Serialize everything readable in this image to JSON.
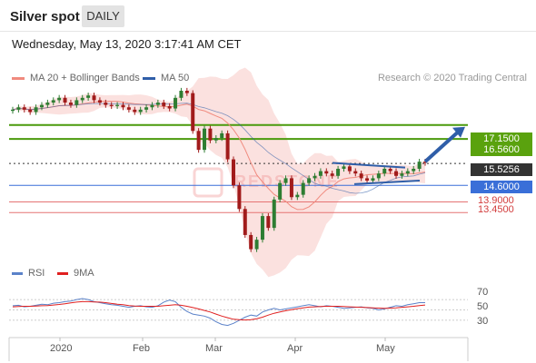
{
  "header": {
    "title": "Silver spot",
    "timeframe": "DAILY"
  },
  "datetime": "Wednesday, May 13, 2020 3:17:41 AM CET",
  "legend": {
    "ma20_bb": {
      "label": "MA 20 + Bollinger Bands",
      "color": "#f08a7e"
    },
    "ma50": {
      "label": "MA 50",
      "color": "#2f5ea8"
    }
  },
  "copyright": "Research © 2020 Trading Central",
  "watermark": "REDSTONE",
  "price_labels": [
    {
      "value": "17.1500",
      "style": "green"
    },
    {
      "value": "16.5600",
      "style": "green"
    },
    {
      "value": "15.5256",
      "style": "dark"
    },
    {
      "value": "14.6000",
      "style": "blue"
    },
    {
      "value": "13.9000",
      "style": "red"
    },
    {
      "value": "13.4500",
      "style": "red"
    }
  ],
  "rsi_legend": {
    "rsi": {
      "label": "RSI",
      "color": "#5b82c9"
    },
    "ma9": {
      "label": "9MA",
      "color": "#e02020"
    }
  },
  "rsi_ticks": [
    "70",
    "50",
    "30"
  ],
  "x_labels": [
    "2020",
    "Feb",
    "Mar",
    "Apr",
    "May"
  ],
  "chart_data": {
    "type": "line",
    "title": "Silver spot",
    "y_range": [
      11.5,
      18.6
    ],
    "levels": [
      {
        "name": "resistance",
        "value": 17.15,
        "color": "#4a9a0c"
      },
      {
        "name": "resistance",
        "value": 16.56,
        "color": "#4a9a0c"
      },
      {
        "name": "last",
        "value": 15.5256,
        "color": "#333333"
      },
      {
        "name": "pivot",
        "value": 14.6,
        "color": "#3a6fd8"
      },
      {
        "name": "support",
        "value": 13.9,
        "color": "#e57373"
      },
      {
        "name": "support",
        "value": 13.45,
        "color": "#e57373"
      }
    ],
    "series": [
      {
        "values": [
          17.8,
          17.9,
          17.8,
          17.7,
          17.9,
          18.0,
          18.1,
          18.2,
          18.3,
          18.1,
          18.0,
          18.2,
          18.3,
          18.4,
          18.2,
          18.1,
          18.0,
          17.95,
          18.0,
          17.9,
          17.8,
          17.7,
          17.8,
          17.9,
          18.0,
          18.1,
          17.95,
          17.85,
          18.3,
          18.6,
          18.5,
          16.9,
          16.1,
          17.0,
          16.5,
          16.6,
          16.8,
          15.7,
          14.6,
          13.6,
          12.5,
          11.9,
          12.3,
          13.3,
          12.8,
          14.0,
          14.7,
          14.9,
          14.1,
          14.2,
          14.7,
          14.9,
          15.0,
          15.2,
          15.1,
          15.0,
          15.3,
          15.4,
          15.2,
          15.1,
          14.9,
          14.8,
          14.9,
          15.1,
          15.3,
          15.2,
          15.0,
          15.1,
          15.2,
          15.3,
          15.6,
          15.55
        ]
      }
    ],
    "forecast": {
      "from": 15.5256,
      "to": 17.15
    }
  },
  "rsi_data": {
    "type": "line",
    "y_range": [
      0,
      100
    ],
    "rsi": [
      58,
      59,
      56,
      57,
      59,
      61,
      60,
      63,
      64,
      66,
      67,
      70,
      72,
      70,
      66,
      64,
      62,
      60,
      59,
      57,
      55,
      57,
      58,
      56,
      55,
      58,
      65,
      69,
      66,
      55,
      47,
      42,
      40,
      38,
      34,
      27,
      22,
      20,
      24,
      30,
      36,
      40,
      38,
      46,
      50,
      53,
      50,
      52,
      54,
      56,
      58,
      60,
      58,
      56,
      58,
      57,
      55,
      53,
      54,
      55,
      56,
      54,
      53,
      50,
      52,
      55,
      58,
      57,
      60,
      62,
      64,
      64
    ],
    "ma9": [
      56,
      56.5,
      57,
      57,
      57.5,
      58,
      58.5,
      59.5,
      60.5,
      62,
      63.5,
      65,
      66,
      66,
      65.5,
      65,
      64,
      62.5,
      61,
      60,
      58.5,
      57.5,
      57,
      57,
      57,
      57,
      58,
      59,
      60,
      59,
      57,
      54.5,
      52,
      49,
      46,
      42,
      38,
      35,
      32,
      31,
      30.5,
      31,
      33,
      36,
      40,
      43.5,
      46,
      48.5,
      50.5,
      52.5,
      54,
      55.5,
      56,
      56.5,
      57,
      57,
      57,
      56.5,
      56,
      55.5,
      55,
      54.5,
      54,
      53.5,
      53,
      53.5,
      54,
      55,
      56,
      57,
      58.5,
      59.5
    ]
  }
}
